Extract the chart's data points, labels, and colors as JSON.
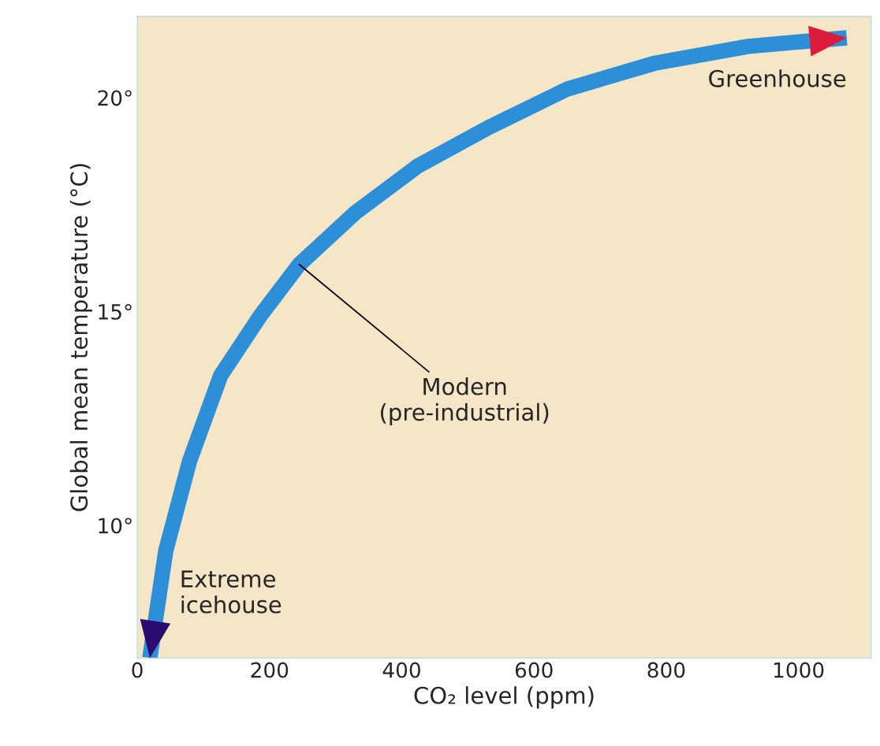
{
  "chart_data": {
    "type": "line",
    "xlabel": "CO₂ level (ppm)",
    "ylabel": "Global mean temperature (°C)",
    "x": [
      19,
      43,
      79,
      126,
      186,
      245,
      329,
      424,
      531,
      650,
      781,
      924,
      1073
    ],
    "series": [
      {
        "values": [
          6.9,
          9.4,
          11.5,
          13.5,
          14.9,
          16.1,
          17.3,
          18.4,
          19.3,
          20.2,
          20.8,
          21.2,
          21.4
        ],
        "color": "#2d8fd8"
      }
    ],
    "xlim": [
      0,
      1110
    ],
    "ylim": [
      6.9,
      21.9
    ],
    "xticks": [
      0,
      200,
      400,
      600,
      800,
      1000
    ],
    "yticks": [
      {
        "value": 10,
        "label": "10°"
      },
      {
        "value": 15,
        "label": "15°"
      },
      {
        "value": 20,
        "label": "20°"
      }
    ],
    "annotations": [
      {
        "text": "Modern\n(pre-industrial)",
        "x": 245,
        "y": 16.1
      },
      {
        "text": "Greenhouse",
        "x": 1073,
        "y": 21.4
      },
      {
        "text": "Extreme\nicehouse",
        "x": 19,
        "y": 6.9
      }
    ]
  }
}
